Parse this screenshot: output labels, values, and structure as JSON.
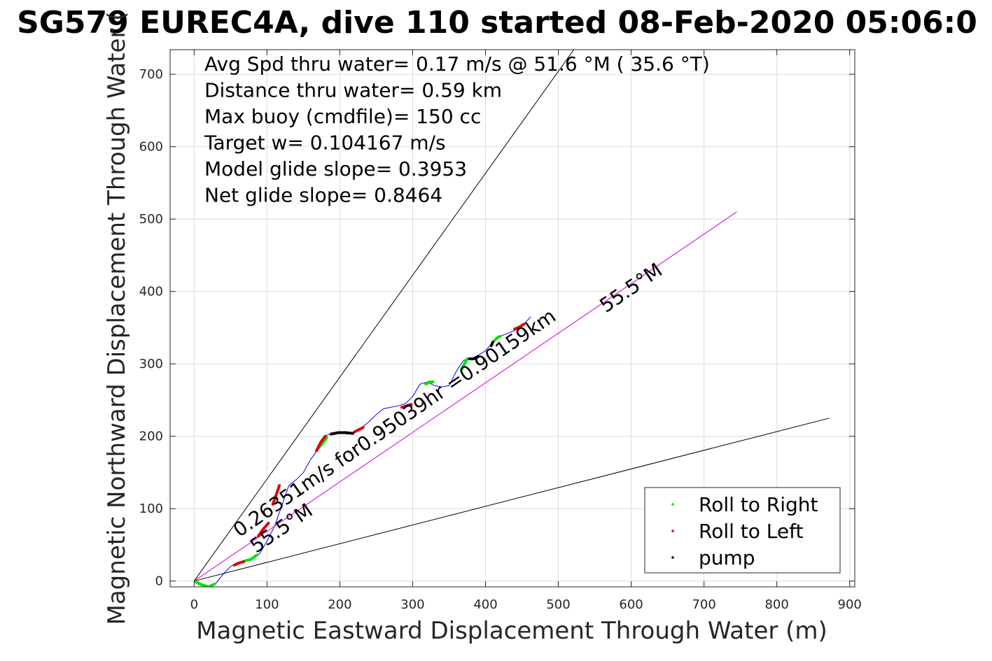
{
  "chart_data": {
    "type": "line",
    "title": "SG579 EUREC4A, dive 110 started 08-Feb-2020 05:06:0",
    "xlabel": "Magnetic Eastward Displacement Through Water (m)",
    "ylabel": "Magnetic Northward Displacement Through Water (",
    "xlim": [
      -33,
      907
    ],
    "ylim": [
      -8,
      734
    ],
    "xticks": [
      0,
      100,
      200,
      300,
      400,
      500,
      600,
      700,
      800,
      900
    ],
    "yticks": [
      0,
      100,
      200,
      300,
      400,
      500,
      600,
      700
    ],
    "grid": true,
    "info_lines": [
      "Avg Spd thru water=  0.17 m/s @  51.6 °M ( 35.6 °T)",
      "Distance thru water=  0.59 km",
      "Max buoy (cmdfile)= 150 cc",
      "Target w= 0.104167 m/s",
      "Model glide slope= 0.3953",
      "Net glide slope= 0.8464"
    ],
    "annotations": [
      {
        "text": "0.26351m/s for0.95039hr =0.90159km",
        "x": 62,
        "y": 60,
        "angle_deg": 34.5
      },
      {
        "text": "55.5°M",
        "x": 85,
        "y": 38,
        "angle_deg": 34.5
      },
      {
        "text": "55.5°M",
        "x": 565,
        "y": 370,
        "angle_deg": 34.5
      }
    ],
    "series": [
      {
        "name": "",
        "kind": "line",
        "color": "#0000ff",
        "x": [
          0,
          10,
          20,
          30,
          40,
          50,
          60,
          70,
          80,
          90,
          100,
          110,
          120,
          130,
          140,
          150,
          160,
          170,
          180,
          190,
          200,
          210,
          220,
          230,
          240,
          250,
          260,
          270,
          280,
          290,
          300,
          310,
          320,
          330,
          340,
          350,
          360,
          370,
          380,
          390,
          400,
          410,
          420,
          430,
          440,
          450,
          462
        ],
        "y": [
          0,
          -5,
          -8,
          -3,
          10,
          20,
          26,
          28,
          30,
          38,
          55,
          75,
          103,
          132,
          140,
          150,
          168,
          182,
          200,
          205,
          205,
          203,
          205,
          212,
          220,
          230,
          238,
          240,
          242,
          245,
          255,
          272,
          275,
          270,
          268,
          270,
          290,
          305,
          307,
          312,
          318,
          330,
          338,
          342,
          346,
          352,
          365
        ]
      },
      {
        "name": "",
        "kind": "line",
        "color": "#d000d0",
        "x": [
          0,
          745
        ],
        "y": [
          0,
          510
        ]
      },
      {
        "name": "",
        "kind": "line",
        "color": "#000000",
        "x": [
          0,
          522
        ],
        "y": [
          0,
          735
        ]
      },
      {
        "name": "",
        "kind": "line",
        "color": "#000000",
        "x": [
          0,
          872
        ],
        "y": [
          0,
          225
        ]
      },
      {
        "name": "Roll to Right",
        "kind": "dots",
        "color": "#00e000",
        "segments": [
          {
            "x": [
              2,
              10,
              20,
              28
            ],
            "y": [
              -1,
              -5,
              -8,
              -4
            ]
          },
          {
            "x": [
              70,
              78,
              86
            ],
            "y": [
              28,
              30,
              36
            ]
          },
          {
            "x": [
              170,
              176,
              182
            ],
            "y": [
              183,
              190,
              198
            ]
          },
          {
            "x": [
              318,
              323,
              328
            ],
            "y": [
              272,
              275,
              275
            ]
          },
          {
            "x": [
              367,
              371,
              375
            ],
            "y": [
              292,
              300,
              307
            ]
          },
          {
            "x": [
              412,
              416,
              420
            ],
            "y": [
              332,
              336,
              338
            ]
          }
        ]
      },
      {
        "name": "Roll to Left",
        "kind": "dots",
        "color": "#e00000",
        "segments": [
          {
            "x": [
              55,
              62,
              68
            ],
            "y": [
              22,
              25,
              27
            ]
          },
          {
            "x": [
              88,
              95,
              102
            ],
            "y": [
              62,
              72,
              80
            ]
          },
          {
            "x": [
              108,
              113,
              117
            ],
            "y": [
              106,
              120,
              132
            ]
          },
          {
            "x": [
              168,
              174,
              180
            ],
            "y": [
              180,
              192,
              200
            ]
          },
          {
            "x": [
              220,
              226,
              232
            ],
            "y": [
              206,
              209,
              212
            ]
          },
          {
            "x": [
              285,
              292,
              298
            ],
            "y": [
              240,
              242,
              244
            ]
          },
          {
            "x": [
              440,
              447,
              453
            ],
            "y": [
              348,
              351,
              355
            ]
          }
        ]
      },
      {
        "name": "pump",
        "kind": "dots",
        "color": "#000000",
        "segments": [
          {
            "x": [
              188,
              198,
              208,
              218
            ],
            "y": [
              203,
              205,
              205,
              204
            ]
          },
          {
            "x": [
              378,
              384,
              390
            ],
            "y": [
              307,
              307,
              310
            ]
          },
          {
            "x": [
              408,
              410
            ],
            "y": [
              325,
              330
            ]
          }
        ]
      }
    ],
    "legend": {
      "placement": "bottom-right",
      "entries": [
        {
          "label": "Roll to Right",
          "color": "#00e000"
        },
        {
          "label": "Roll to Left",
          "color": "#e00000"
        },
        {
          "label": "pump",
          "color": "#000000"
        }
      ]
    }
  }
}
